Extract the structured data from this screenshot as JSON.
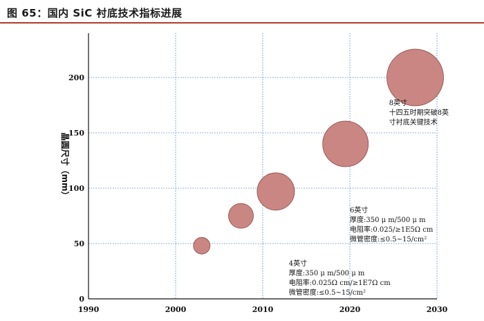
{
  "figure_title": "图 65：国内 SiC 衬底技术指标进展",
  "chart_data": {
    "type": "scatter",
    "title": "",
    "xlabel": "",
    "ylabel": "晶圆尺寸（mm）",
    "xlim": [
      1990,
      2030
    ],
    "ylim": [
      0,
      240
    ],
    "xticks": [
      1990,
      2000,
      2010,
      2020,
      2030
    ],
    "yticks": [
      0,
      50,
      100,
      150,
      200
    ],
    "grid": true,
    "bubble_color": "#c98682",
    "bubble_edge": "#8a4a47",
    "points": [
      {
        "x": 2003,
        "y": 48,
        "size": 12
      },
      {
        "x": 2007.5,
        "y": 75,
        "size": 18
      },
      {
        "x": 2011.5,
        "y": 97,
        "size": 27
      },
      {
        "x": 2019.5,
        "y": 140,
        "size": 33
      },
      {
        "x": 2027.5,
        "y": 200,
        "size": 41
      }
    ],
    "annotations": [
      {
        "x": 2013,
        "y": 30,
        "lines": [
          "4英寸",
          "厚度:350 μ m/500 μ m",
          "电阻率:0.025Ω cm/≥1E7Ω cm",
          "微管密度:≤0.5~15/cm²"
        ]
      },
      {
        "x": 2020,
        "y": 78,
        "lines": [
          "6英寸",
          "厚度:350 μ m/500 μ m",
          "电阻率:0.025/≥1E5Ω cm",
          "微管密度:≤0.5~15/cm²"
        ]
      },
      {
        "x": 2024.5,
        "y": 175,
        "lines": [
          "8英寸",
          "十四五时期突破8英",
          "寸衬底关键技术"
        ]
      }
    ]
  }
}
